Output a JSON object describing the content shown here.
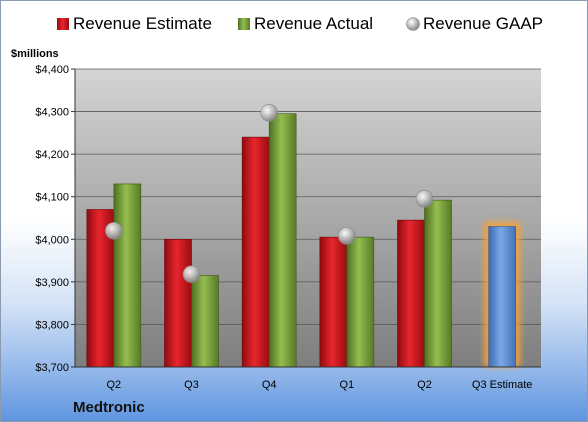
{
  "company": "Medtronic",
  "chart_data": {
    "type": "bar",
    "units_label": "$millions",
    "categories": [
      "Q2",
      "Q3",
      "Q4",
      "Q1",
      "Q2",
      "Q3 Estimate"
    ],
    "ylim": [
      3700,
      4400
    ],
    "yticks": [
      3700,
      3800,
      3900,
      4000,
      4100,
      4200,
      4300,
      4400
    ],
    "ytick_labels": [
      "$3,700",
      "$3,800",
      "$3,900",
      "$4,000",
      "$4,100",
      "$4,200",
      "$4,300",
      "$4,400"
    ],
    "grid": true,
    "legend_position": "top",
    "series": [
      {
        "name": "Revenue Estimate",
        "kind": "bar",
        "color": "#d0121a",
        "values": [
          4070,
          4000,
          4240,
          4005,
          4045,
          null
        ]
      },
      {
        "name": "Revenue Actual",
        "kind": "bar",
        "color": "#7ea83a",
        "values": [
          4130,
          3915,
          4295,
          4005,
          4092,
          null
        ]
      },
      {
        "name": "Revenue GAAP",
        "kind": "marker",
        "color": "#a9a9a9",
        "values": [
          4020,
          3918,
          4297,
          4008,
          4095,
          null
        ]
      }
    ],
    "forecast": {
      "category": "Q3 Estimate",
      "value": 4030,
      "color": "#5b8fd4",
      "highlight": "#f7a23b"
    }
  }
}
